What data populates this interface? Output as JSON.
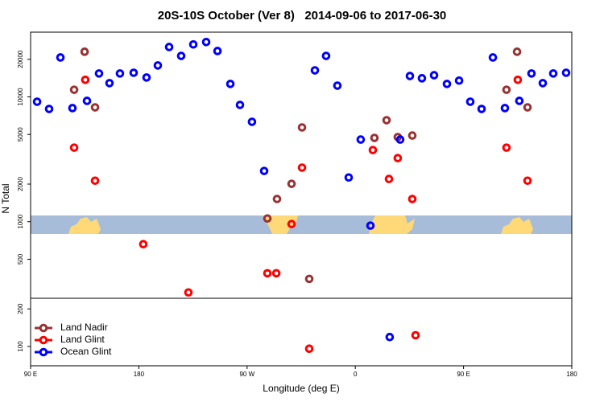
{
  "chart_data": {
    "type": "scatter",
    "title": "20S-10S October (Ver 8)   2014-09-06 to 2017-06-30",
    "x_label": "Longitude (deg E)",
    "y_label": "N Total",
    "log_y": true,
    "legend": "bottom-left",
    "xlim": [
      90,
      540
    ],
    "ylim": [
      70,
      33000
    ],
    "xticks": [
      {
        "value": 90,
        "label": "90 E"
      },
      {
        "value": 180,
        "label": "180"
      },
      {
        "value": 270,
        "label": "90 W"
      },
      {
        "value": 360,
        "label": "0"
      },
      {
        "value": 450,
        "label": "90 E"
      },
      {
        "value": 540,
        "label": "180"
      }
    ],
    "yticks": [
      100,
      200,
      500,
      1000,
      2000,
      5000,
      10000,
      20000
    ],
    "series": [
      {
        "name": "Land Nadir",
        "color": "#993333",
        "x": [
          126.2,
          134.9,
          143.6,
          286.9,
          294.9,
          307.0,
          315.7,
          321.7,
          375.9,
          386.0,
          395.3,
          407.4,
          485.7,
          494.5,
          503.2
        ],
        "values": [
          11400,
          23000,
          8240,
          1060,
          1520,
          2010,
          5690,
          348,
          4690,
          6500,
          4760,
          4900,
          11400,
          23000,
          8240
        ]
      },
      {
        "name": "Land Glint",
        "color": "#ff0000",
        "x": [
          126.2,
          135.5,
          143.6,
          183.7,
          221.2,
          286.9,
          294.3,
          307.0,
          315.7,
          321.7,
          374.6,
          388.0,
          395.3,
          407.4,
          410.1,
          485.7,
          495.1,
          503.2
        ],
        "values": [
          3920,
          13700,
          2130,
          660,
          271,
          386,
          386,
          957,
          2710,
          96,
          3750,
          2200,
          3230,
          1520,
          123,
          3920,
          13700,
          2130
        ]
      },
      {
        "name": "Ocean Glint",
        "color": "#0000ff",
        "x": [
          95.4,
          105.4,
          114.8,
          124.8,
          136.9,
          146.9,
          155.6,
          164.3,
          175.7,
          186.4,
          195.8,
          205.2,
          215.2,
          225.3,
          236.0,
          245.4,
          256.1,
          264.1,
          274.1,
          284.2,
          326.4,
          335.7,
          345.1,
          354.5,
          364.5,
          372.6,
          388.6,
          397.3,
          405.4,
          415.4,
          425.5,
          436.2,
          446.3,
          455.6,
          465.0,
          474.4,
          484.4,
          496.4,
          506.5,
          515.9,
          524.6,
          535.3
        ],
        "values": [
          9140,
          8000,
          20700,
          8130,
          9290,
          15400,
          12880,
          15400,
          15600,
          14300,
          17850,
          25100,
          21300,
          26300,
          27500,
          23300,
          12700,
          8620,
          6310,
          2550,
          16300,
          21300,
          12300,
          2260,
          4550,
          930,
          119,
          4550,
          14700,
          14100,
          14900,
          12700,
          13500,
          9140,
          8000,
          20700,
          8130,
          9290,
          15400,
          12880,
          15400,
          15600
        ]
      }
    ]
  }
}
